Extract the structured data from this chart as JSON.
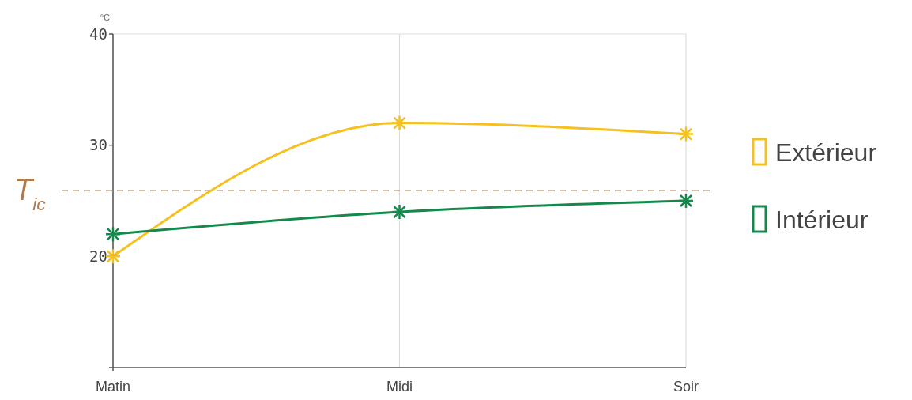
{
  "chart_data": {
    "type": "line",
    "ylabel": "°C",
    "categories": [
      "Matin",
      "Midi",
      "Soir"
    ],
    "series": [
      {
        "name": "Extérieur",
        "color": "#f4c120",
        "values": [
          20,
          32,
          31
        ]
      },
      {
        "name": "Intérieur",
        "color": "#138a4c",
        "values": [
          22,
          24,
          25
        ]
      }
    ],
    "ylim": [
      10,
      40
    ],
    "yticks": [
      20,
      30,
      40
    ],
    "grid": "x",
    "legend": "right",
    "marker": "cross",
    "line_style": "solid",
    "ref_lines": [
      {
        "axis": "y",
        "value": 25.9,
        "label": "T$_{ic}$",
        "color": "#b07a4f",
        "line_style": "dashed"
      }
    ]
  }
}
